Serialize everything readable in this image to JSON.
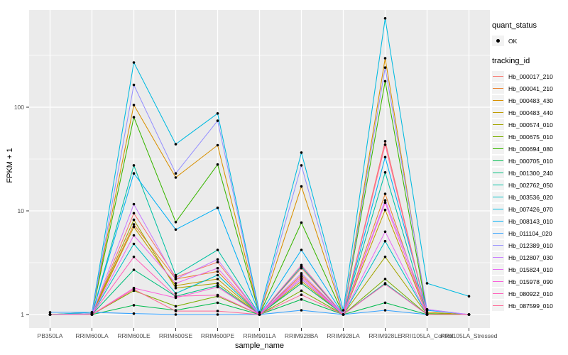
{
  "colors": {
    "panel_bg": "#EBEBEB",
    "grid": "#FFFFFF",
    "tick_text": "#4D4D4D",
    "axis_title": "#000000",
    "legend_key_bg": "#F2F2F2",
    "point": "#000000",
    "background": "#FFFFFF"
  },
  "legend": {
    "quant_status": {
      "title": "quant_status",
      "items": [
        {
          "label": "OK",
          "marker": "black-point"
        }
      ]
    },
    "tracking_id": {
      "title": "tracking_id"
    }
  },
  "chart_data": {
    "type": "line",
    "title": "",
    "xlabel": "sample_name",
    "ylabel": "FPKM + 1",
    "scale": "log10",
    "ylim": [
      0.85,
      900
    ],
    "grid": "on",
    "legend_position": "right",
    "yticks": [
      {
        "label": "1",
        "value": 1
      },
      {
        "label": "10",
        "value": 10
      },
      {
        "label": "100",
        "value": 100
      }
    ],
    "categories": [
      "PB350LA",
      "RRIM600LA",
      "RRIM600LE",
      "RRIM600SE",
      "RRIM600PE",
      "RRIM901LA",
      "RRIM928BA",
      "RRIM928LA",
      "RRIM928LE",
      "RRII105LA_Control",
      "RRII105LA_Stressed"
    ],
    "point_marker": "solid-black-circle",
    "series": [
      {
        "name": "Hb_000017_210",
        "color": "#F8766D",
        "values": [
          1.0,
          1.0,
          9.5,
          2.3,
          3.2,
          1.0,
          2.8,
          1.0,
          47.0,
          1.0,
          1.0
        ]
      },
      {
        "name": "Hb_000041_210",
        "color": "#EA8331",
        "values": [
          1.0,
          1.0,
          7.4,
          2.2,
          2.6,
          1.0,
          2.4,
          1.0,
          14.6,
          1.0,
          1.0
        ]
      },
      {
        "name": "Hb_000483_430",
        "color": "#D89000",
        "values": [
          1.0,
          1.05,
          105.0,
          21.0,
          43.0,
          1.0,
          17.2,
          1.0,
          297.0,
          1.05,
          1.0
        ]
      },
      {
        "name": "Hb_000483_440",
        "color": "#C09B00",
        "values": [
          1.0,
          1.0,
          7.0,
          1.9,
          2.2,
          1.0,
          2.1,
          1.0,
          10.2,
          1.0,
          1.0
        ]
      },
      {
        "name": "Hb_000574_010",
        "color": "#A3A500",
        "values": [
          1.0,
          1.0,
          8.2,
          1.8,
          2.0,
          1.0,
          2.0,
          1.0,
          3.6,
          1.0,
          1.0
        ]
      },
      {
        "name": "Hb_000675_010",
        "color": "#7CAE00",
        "values": [
          1.0,
          1.0,
          1.7,
          1.2,
          1.5,
          1.0,
          1.7,
          1.0,
          2.2,
          1.0,
          1.0
        ]
      },
      {
        "name": "Hb_000694_080",
        "color": "#39B600",
        "values": [
          1.0,
          1.02,
          80.0,
          7.8,
          28.0,
          1.0,
          7.7,
          1.0,
          178.0,
          1.02,
          1.0
        ]
      },
      {
        "name": "Hb_000705_010",
        "color": "#00BB4E",
        "values": [
          1.0,
          1.0,
          1.23,
          1.1,
          1.3,
          1.0,
          1.4,
          1.0,
          1.3,
          1.0,
          1.0
        ]
      },
      {
        "name": "Hb_001300_240",
        "color": "#00BF7D",
        "values": [
          1.0,
          1.0,
          2.7,
          1.5,
          1.9,
          1.0,
          2.0,
          1.0,
          2.0,
          1.0,
          1.0
        ]
      },
      {
        "name": "Hb_002762_050",
        "color": "#00C1A3",
        "values": [
          1.0,
          1.0,
          27.5,
          2.4,
          4.2,
          1.0,
          2.9,
          1.0,
          23.5,
          1.0,
          1.0
        ]
      },
      {
        "name": "Hb_003536_020",
        "color": "#00BFC4",
        "values": [
          1.0,
          1.0,
          4.8,
          1.6,
          2.4,
          1.0,
          2.2,
          1.0,
          5.1,
          1.0,
          1.0
        ]
      },
      {
        "name": "Hb_007426_070",
        "color": "#00BAE0",
        "values": [
          1.0,
          1.05,
          270.0,
          44.0,
          87.0,
          1.05,
          36.5,
          1.1,
          720.0,
          2.0,
          1.5
        ]
      },
      {
        "name": "Hb_008143_010",
        "color": "#00B0F6",
        "values": [
          1.0,
          1.0,
          23.0,
          6.6,
          10.7,
          1.0,
          4.2,
          1.0,
          33.0,
          1.1,
          1.0
        ]
      },
      {
        "name": "Hb_011104_020",
        "color": "#35A2FF",
        "values": [
          1.05,
          1.05,
          1.02,
          1.0,
          1.0,
          1.0,
          1.1,
          1.0,
          1.1,
          1.0,
          1.0
        ]
      },
      {
        "name": "Hb_012389_010",
        "color": "#9590FF",
        "values": [
          1.0,
          1.02,
          164.0,
          23.0,
          74.0,
          1.0,
          27.5,
          1.0,
          241.0,
          1.12,
          1.0
        ]
      },
      {
        "name": "Hb_012807_030",
        "color": "#C77CFF",
        "values": [
          1.0,
          1.0,
          11.6,
          2.2,
          3.4,
          1.0,
          2.5,
          1.0,
          12.6,
          1.12,
          1.0
        ]
      },
      {
        "name": "Hb_015824_010",
        "color": "#E76BF3",
        "values": [
          1.0,
          1.0,
          5.8,
          2.0,
          2.8,
          1.0,
          2.2,
          1.0,
          6.3,
          1.0,
          1.0
        ]
      },
      {
        "name": "Hb_015978_090",
        "color": "#FA62DB",
        "values": [
          1.0,
          1.0,
          1.8,
          1.45,
          1.84,
          1.0,
          2.3,
          1.0,
          12.0,
          1.0,
          1.0
        ]
      },
      {
        "name": "Hb_080922_010",
        "color": "#FF62BC",
        "values": [
          1.0,
          1.0,
          3.6,
          1.5,
          1.54,
          1.0,
          3.0,
          1.0,
          1.96,
          1.0,
          1.0
        ]
      },
      {
        "name": "Hb_087599_010",
        "color": "#FF6A98",
        "values": [
          1.0,
          1.0,
          1.75,
          1.08,
          1.08,
          1.0,
          1.55,
          1.0,
          43.5,
          1.0,
          1.0
        ]
      }
    ]
  }
}
